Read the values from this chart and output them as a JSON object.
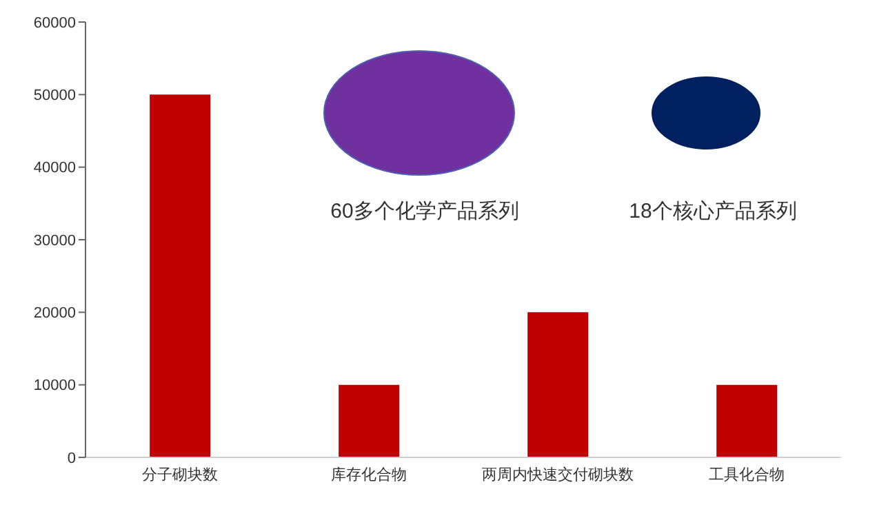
{
  "chart_data": {
    "type": "bar",
    "categories": [
      "分子砌块数",
      "库存化合物",
      "两周内快速交付砌块数",
      "工具化合物"
    ],
    "values": [
      50000,
      10000,
      20000,
      10000
    ],
    "color": "#c00000",
    "ylim": [
      0,
      60000
    ],
    "yticks": [
      0,
      10000,
      20000,
      30000,
      40000,
      50000,
      60000
    ],
    "annotations": [
      "60多个化学产品系列",
      "18个核心产品系列"
    ]
  }
}
